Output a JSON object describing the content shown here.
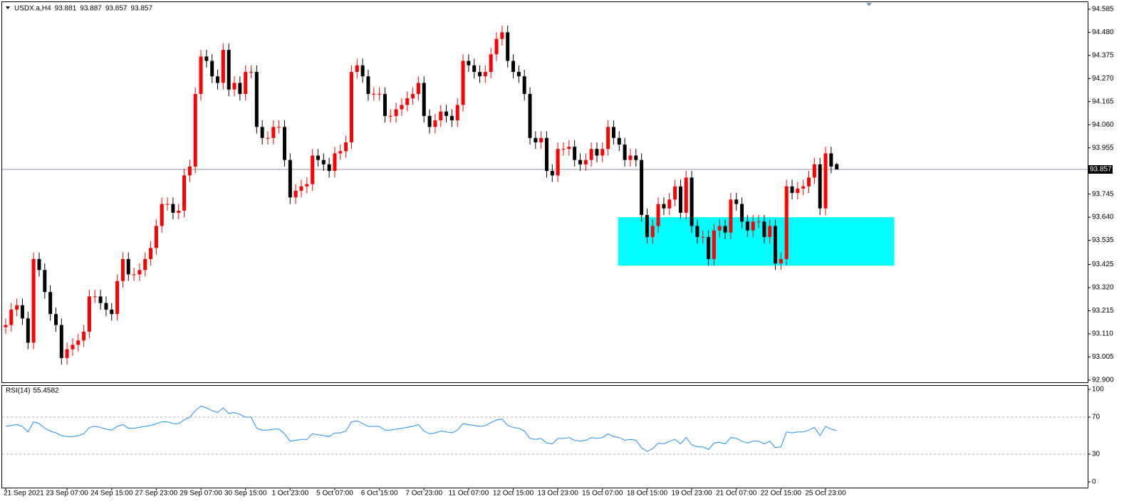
{
  "header": {
    "symbol": "USDX.a,H4"
  },
  "chart_data": [
    {
      "type": "candlestick",
      "categories": [
        "21 Sep 2021",
        null,
        null,
        null,
        null,
        null,
        null,
        null,
        null,
        null,
        null,
        "23 Sep 07:00",
        null,
        null,
        null,
        null,
        null,
        null,
        null,
        "24 Sep 15:00",
        null,
        null,
        null,
        null,
        null,
        null,
        null,
        "27 Sep 23:00",
        null,
        null,
        null,
        null,
        null,
        null,
        null,
        "29 Sep 07:00",
        null,
        null,
        null,
        null,
        null,
        null,
        null,
        "30 Sep 15:00",
        null,
        null,
        null,
        null,
        null,
        null,
        null,
        "1 Oct 23:00",
        null,
        null,
        null,
        null,
        null,
        null,
        null,
        "5 Oct 07:00",
        null,
        null,
        null,
        null,
        null,
        null,
        null,
        "6 Oct 15:00",
        null,
        null,
        null,
        null,
        null,
        null,
        null,
        "7 Oct 23:00",
        null,
        null,
        null,
        null,
        null,
        null,
        null,
        "11 Oct 07:00",
        null,
        null,
        null,
        null,
        null,
        null,
        null,
        "12 Oct 15:00",
        null,
        null,
        null,
        null,
        null,
        null,
        null,
        "13 Oct 23:00",
        null,
        null,
        null,
        null,
        null,
        null,
        null,
        "15 Oct 07:00",
        null,
        null,
        null,
        null,
        null,
        null,
        null,
        "18 Oct 15:00",
        null,
        null,
        null,
        null,
        null,
        null,
        null,
        "19 Oct 23:00",
        null,
        null,
        null,
        null,
        null,
        null,
        null,
        "21 Oct 07:00",
        null,
        null,
        null,
        null,
        null,
        null,
        null,
        "22 Oct 15:00",
        null,
        null,
        null,
        null,
        null,
        null,
        null,
        "25 Oct 23:00",
        null,
        null
      ],
      "open": [
        93.14,
        93.15,
        93.22,
        93.24,
        93.18,
        93.07,
        93.45,
        93.4,
        93.3,
        93.2,
        93.15,
        93.0,
        93.04,
        93.06,
        93.08,
        93.12,
        93.28,
        93.28,
        93.25,
        93.22,
        93.2,
        93.35,
        93.45,
        93.38,
        93.38,
        93.4,
        93.45,
        93.5,
        93.6,
        93.7,
        93.7,
        93.66,
        93.67,
        93.83,
        93.87,
        94.2,
        94.37,
        94.35,
        94.28,
        94.25,
        94.4,
        94.22,
        94.25,
        94.2,
        94.3,
        94.3,
        94.05,
        94.0,
        94.0,
        94.05,
        94.05,
        93.9,
        93.73,
        93.76,
        93.78,
        93.79,
        93.92,
        93.9,
        93.88,
        93.85,
        93.93,
        93.94,
        93.98,
        94.3,
        94.33,
        94.28,
        94.2,
        94.2,
        94.2,
        94.1,
        94.1,
        94.13,
        94.15,
        94.18,
        94.2,
        94.25,
        94.1,
        94.05,
        94.08,
        94.12,
        94.1,
        94.08,
        94.15,
        94.35,
        94.33,
        94.3,
        94.28,
        94.3,
        94.38,
        94.45,
        94.48,
        94.35,
        94.3,
        94.28,
        94.2,
        94.0,
        93.98,
        94.0,
        93.85,
        93.83,
        93.95,
        93.95,
        93.96,
        93.9,
        93.88,
        93.9,
        93.95,
        93.92,
        93.95,
        94.05,
        94.0,
        93.97,
        93.9,
        93.92,
        93.9,
        93.65,
        93.55,
        93.6,
        93.7,
        93.68,
        93.72,
        93.78,
        93.66,
        93.82,
        93.6,
        93.55,
        93.55,
        93.45,
        93.58,
        93.6,
        93.57,
        93.72,
        93.7,
        93.62,
        93.58,
        93.62,
        93.62,
        93.55,
        93.6,
        93.43,
        93.45,
        93.78,
        93.75,
        93.77,
        93.78,
        93.82,
        93.88,
        93.68,
        93.93,
        93.881
      ],
      "high": [
        93.18,
        93.25,
        93.27,
        93.27,
        93.21,
        93.48,
        93.48,
        93.43,
        93.33,
        93.23,
        93.18,
        93.07,
        93.09,
        93.11,
        93.15,
        93.31,
        93.31,
        93.31,
        93.28,
        93.25,
        93.38,
        93.48,
        93.48,
        93.41,
        93.43,
        93.48,
        93.53,
        93.63,
        93.73,
        93.73,
        93.73,
        93.7,
        93.86,
        93.9,
        94.23,
        94.4,
        94.4,
        94.38,
        94.31,
        94.43,
        94.43,
        94.28,
        94.28,
        94.33,
        94.33,
        94.33,
        94.08,
        94.03,
        94.08,
        94.08,
        94.08,
        93.93,
        93.79,
        93.81,
        93.82,
        93.95,
        93.95,
        93.93,
        93.91,
        93.96,
        93.97,
        94.01,
        94.33,
        94.36,
        94.36,
        94.31,
        94.23,
        94.23,
        94.23,
        94.13,
        94.16,
        94.18,
        94.21,
        94.23,
        94.28,
        94.28,
        94.13,
        94.11,
        94.15,
        94.15,
        94.13,
        94.18,
        94.38,
        94.38,
        94.36,
        94.33,
        94.33,
        94.41,
        94.48,
        94.51,
        94.51,
        94.38,
        94.33,
        94.31,
        94.23,
        94.03,
        94.03,
        94.03,
        93.88,
        93.98,
        93.98,
        93.99,
        93.99,
        93.93,
        93.93,
        93.98,
        93.98,
        93.98,
        94.08,
        94.08,
        94.03,
        94.0,
        93.95,
        93.95,
        93.93,
        93.68,
        93.63,
        93.73,
        93.73,
        93.75,
        93.81,
        93.81,
        93.85,
        93.85,
        93.63,
        93.58,
        93.58,
        93.61,
        93.63,
        93.63,
        93.75,
        93.75,
        93.73,
        93.65,
        93.65,
        93.65,
        93.65,
        93.63,
        93.63,
        93.48,
        93.81,
        93.81,
        93.8,
        93.81,
        93.85,
        93.91,
        93.91,
        93.96,
        93.96,
        93.887
      ],
      "low": [
        93.11,
        93.12,
        93.19,
        93.15,
        93.04,
        93.04,
        93.37,
        93.27,
        93.17,
        93.12,
        92.97,
        92.97,
        93.01,
        93.03,
        93.05,
        93.09,
        93.25,
        93.22,
        93.19,
        93.17,
        93.17,
        93.32,
        93.35,
        93.35,
        93.35,
        93.37,
        93.42,
        93.47,
        93.57,
        93.67,
        93.63,
        93.63,
        93.64,
        93.8,
        93.84,
        94.17,
        94.32,
        94.25,
        94.22,
        94.22,
        94.19,
        94.19,
        94.17,
        94.17,
        94.27,
        94.02,
        93.97,
        93.97,
        93.97,
        94.02,
        93.87,
        93.7,
        93.7,
        93.73,
        93.75,
        93.76,
        93.87,
        93.85,
        93.82,
        93.82,
        93.9,
        93.91,
        93.95,
        94.27,
        94.25,
        94.17,
        94.17,
        94.17,
        94.07,
        94.07,
        94.07,
        94.1,
        94.12,
        94.15,
        94.17,
        94.07,
        94.02,
        94.02,
        94.05,
        94.07,
        94.05,
        94.05,
        94.12,
        94.3,
        94.27,
        94.25,
        94.25,
        94.27,
        94.35,
        94.42,
        94.32,
        94.27,
        94.25,
        94.17,
        93.97,
        93.95,
        93.95,
        93.82,
        93.8,
        93.8,
        93.92,
        93.92,
        93.87,
        93.85,
        93.85,
        93.87,
        93.89,
        93.89,
        93.92,
        93.97,
        93.94,
        93.87,
        93.87,
        93.87,
        93.62,
        93.52,
        93.52,
        93.57,
        93.65,
        93.65,
        93.69,
        93.63,
        93.63,
        93.57,
        93.52,
        93.52,
        93.42,
        93.42,
        93.55,
        93.54,
        93.54,
        93.67,
        93.59,
        93.55,
        93.55,
        93.59,
        93.52,
        93.52,
        93.4,
        93.4,
        93.42,
        93.72,
        93.72,
        93.74,
        93.75,
        93.79,
        93.65,
        93.65,
        93.84,
        93.857
      ],
      "close": [
        93.15,
        93.22,
        93.24,
        93.18,
        93.07,
        93.45,
        93.4,
        93.3,
        93.2,
        93.15,
        93.0,
        93.04,
        93.06,
        93.08,
        93.12,
        93.28,
        93.28,
        93.25,
        93.22,
        93.2,
        93.35,
        93.45,
        93.38,
        93.38,
        93.4,
        93.45,
        93.5,
        93.6,
        93.7,
        93.7,
        93.66,
        93.67,
        93.83,
        93.87,
        94.2,
        94.37,
        94.35,
        94.28,
        94.25,
        94.4,
        94.22,
        94.25,
        94.2,
        94.3,
        94.3,
        94.05,
        94.0,
        94.0,
        94.05,
        94.05,
        93.9,
        93.73,
        93.76,
        93.78,
        93.79,
        93.92,
        93.9,
        93.88,
        93.85,
        93.93,
        93.94,
        93.98,
        94.3,
        94.33,
        94.28,
        94.2,
        94.2,
        94.2,
        94.1,
        94.1,
        94.13,
        94.15,
        94.18,
        94.2,
        94.25,
        94.1,
        94.05,
        94.08,
        94.12,
        94.1,
        94.08,
        94.15,
        94.35,
        94.33,
        94.3,
        94.28,
        94.3,
        94.38,
        94.45,
        94.48,
        94.35,
        94.3,
        94.28,
        94.2,
        94.0,
        93.98,
        94.0,
        93.85,
        93.83,
        93.95,
        93.95,
        93.96,
        93.9,
        93.88,
        93.9,
        93.95,
        93.92,
        93.95,
        94.05,
        94.0,
        93.97,
        93.9,
        93.92,
        93.9,
        93.65,
        93.55,
        93.6,
        93.7,
        93.68,
        93.72,
        93.78,
        93.66,
        93.82,
        93.6,
        93.55,
        93.55,
        93.45,
        93.58,
        93.6,
        93.57,
        93.72,
        93.7,
        93.62,
        93.58,
        93.62,
        93.62,
        93.55,
        93.6,
        93.43,
        93.45,
        93.78,
        93.75,
        93.77,
        93.78,
        93.82,
        93.88,
        93.68,
        93.93,
        93.87,
        93.857
      ],
      "up_color": "#ff0000",
      "down_color": "#000000",
      "ylim": [
        92.89,
        94.617
      ],
      "yticks": [
        94.585,
        {
          "value": 94.48,
          "label": "94.480"
        },
        94.375,
        {
          "value": 94.27,
          "label": "94.270"
        },
        94.165,
        {
          "value": 94.06,
          "label": "94.060"
        },
        93.955,
        93.745,
        {
          "value": 93.64,
          "label": "93.640"
        },
        93.535,
        93.425,
        {
          "value": 93.32,
          "label": "93.320"
        },
        93.215,
        {
          "value": 93.11,
          "label": "93.110"
        },
        93.005,
        {
          "value": 92.9,
          "label": "92.900"
        }
      ],
      "last_price_line": true,
      "rectangle": {
        "xlim": [
          109.8,
          159.3
        ],
        "ylim": [
          93.42,
          93.64
        ],
        "color": "#00ffff"
      }
    },
    {
      "type": "line",
      "title": "RSI(14)",
      "values": [
        60,
        61,
        62,
        60,
        54,
        65,
        63,
        58,
        55,
        53,
        50,
        49,
        49,
        50,
        52,
        59,
        60,
        59,
        57,
        56,
        60,
        62,
        58,
        58,
        59,
        60,
        61,
        63,
        65,
        65,
        63,
        63,
        67,
        70,
        77,
        82,
        80,
        77,
        75,
        80,
        74,
        75,
        73,
        70,
        70,
        58,
        56,
        56,
        57,
        57,
        52,
        44,
        45,
        46,
        46,
        52,
        51,
        50,
        49,
        53,
        53,
        55,
        65,
        66,
        63,
        60,
        60,
        60,
        56,
        56,
        57,
        58,
        59,
        60,
        62,
        55,
        52,
        53,
        55,
        54,
        53,
        56,
        63,
        62,
        61,
        60,
        61,
        64,
        67,
        68,
        61,
        59,
        58,
        55,
        47,
        46,
        47,
        42,
        41,
        47,
        47,
        48,
        45,
        44,
        45,
        48,
        47,
        48,
        52,
        49,
        48,
        45,
        46,
        45,
        37,
        33,
        36,
        42,
        41,
        44,
        46,
        41,
        48,
        40,
        38,
        38,
        35,
        42,
        43,
        41,
        48,
        47,
        44,
        42,
        44,
        44,
        41,
        44,
        37,
        38,
        54,
        53,
        54,
        54,
        56,
        59,
        50,
        60,
        57,
        55.4582
      ],
      "color": "#1e90ff",
      "ylim": [
        0,
        100
      ],
      "yticks": [
        100,
        70,
        30,
        0
      ],
      "levels": [
        70,
        30
      ]
    }
  ]
}
